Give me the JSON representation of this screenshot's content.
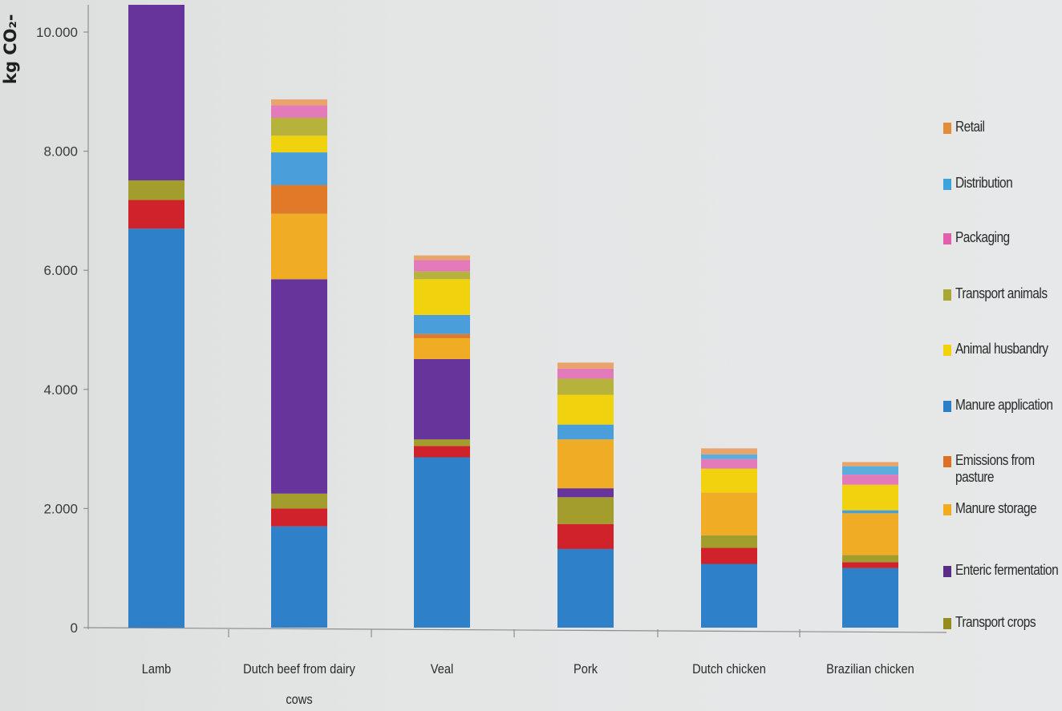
{
  "chart_data": {
    "type": "bar",
    "stacked": true,
    "ylabel": "kg CO₂-",
    "ylim": [
      0,
      10500
    ],
    "yticks": [
      0,
      2000,
      4000,
      6000,
      8000,
      10000
    ],
    "ytick_labels": [
      "0",
      "2.000",
      "4.000",
      "6.000",
      "8.000",
      "10.000"
    ],
    "categories": [
      "Lamb",
      "Dutch beef from dairy cows",
      "Veal",
      "Pork",
      "Dutch chicken",
      "Brazilian chicken"
    ],
    "category_labels": [
      "Lamb",
      "Dutch beef from dairy cows",
      "Veal",
      "Pork",
      "Dutch chicken",
      "Brazilian chicken"
    ],
    "grid": false,
    "legend_position": "right",
    "series": [
      {
        "name": "Manure application",
        "color": "#2e80c8",
        "values": [
          6700,
          1700,
          2860,
          1320,
          1070,
          1000
        ]
      },
      {
        "name": "",
        "color": "#cf222b",
        "values": [
          480,
          300,
          190,
          420,
          270,
          100
        ]
      },
      {
        "name": "Transport crops",
        "color": "#a29d2c",
        "values": [
          330,
          250,
          110,
          450,
          210,
          120
        ]
      },
      {
        "name": "Enteric fermentation",
        "color": "#66349a",
        "values": [
          3200,
          3600,
          1350,
          150,
          0,
          0
        ]
      },
      {
        "name": "Manure storage",
        "color": "#f1ac26",
        "values": [
          0,
          1100,
          350,
          820,
          720,
          700
        ]
      },
      {
        "name": "Emissions from pasture",
        "color": "#e07a28",
        "values": [
          0,
          480,
          70,
          0,
          0,
          0
        ]
      },
      {
        "name": "Manure application",
        "color": "#4a9fdb",
        "values": [
          0,
          550,
          320,
          250,
          0,
          50
        ]
      },
      {
        "name": "Animal husbandry",
        "color": "#f0d30e",
        "values": [
          0,
          280,
          600,
          500,
          400,
          430
        ]
      },
      {
        "name": "Transport animals",
        "color": "#b6b23c",
        "values": [
          0,
          300,
          130,
          270,
          0,
          0
        ]
      },
      {
        "name": "Packaging",
        "color": "#e37aba",
        "values": [
          0,
          210,
          190,
          170,
          160,
          170
        ]
      },
      {
        "name": "Distribution",
        "color": "#59aede",
        "values": [
          0,
          0,
          0,
          0,
          80,
          140
        ]
      },
      {
        "name": "Retail",
        "color": "#e8a46a",
        "values": [
          0,
          100,
          80,
          100,
          100,
          70
        ]
      }
    ]
  },
  "legend": [
    {
      "label": "Retail",
      "color": "#e38a3c"
    },
    {
      "label": "Distribution",
      "color": "#3ca4dc"
    },
    {
      "label": "Packaging",
      "color": "#e35fae"
    },
    {
      "label": "Transport animals",
      "color": "#a8a832"
    },
    {
      "label": "Animal husbandry",
      "color": "#f2d20c"
    },
    {
      "label": "Manure application",
      "color": "#2b7fc6"
    },
    {
      "label": "Emissions from pasture",
      "color": "#de6f23"
    },
    {
      "label": "Manure storage",
      "color": "#f2ab1a"
    },
    {
      "label": "Enteric fermentation",
      "color": "#5a2e86"
    },
    {
      "label": "Transport crops",
      "color": "#968c1e"
    }
  ]
}
